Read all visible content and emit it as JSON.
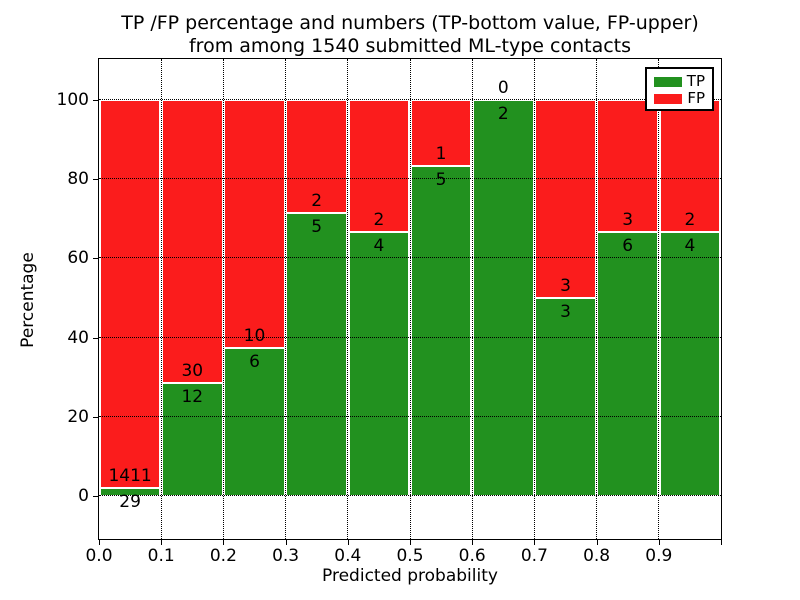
{
  "title": {
    "line1": "TP /FP percentage and numbers (TP-bottom value, FP-upper)",
    "line2": "from among 1540 submitted ML-type contacts"
  },
  "axes": {
    "xlabel": "Predicted probability",
    "ylabel": "Percentage"
  },
  "colors": {
    "tp": "#22911f",
    "fp": "#fb1c1c",
    "grid": "#000000",
    "frame": "#000000",
    "background": "#ffffff"
  },
  "legend": {
    "position": "upper right",
    "items": [
      {
        "label": "TP",
        "color": "#22911f"
      },
      {
        "label": "FP",
        "color": "#fb1c1c"
      }
    ]
  },
  "chart_data": {
    "type": "bar",
    "stacked": true,
    "percent_normalized": true,
    "title": "TP /FP percentage and numbers (TP-bottom value, FP-upper) from among 1540 submitted ML-type contacts",
    "xlabel": "Predicted probability",
    "ylabel": "Percentage",
    "grid": true,
    "legend_position": "upper right",
    "total_contacts": 1540,
    "bins": [
      "0.0-0.1",
      "0.1-0.2",
      "0.2-0.3",
      "0.3-0.4",
      "0.4-0.5",
      "0.5-0.6",
      "0.6-0.7",
      "0.7-0.8",
      "0.8-0.9",
      "0.9-1.0"
    ],
    "xtick_labels": [
      "0.0",
      "0.1",
      "0.2",
      "0.3",
      "0.4",
      "0.5",
      "0.6",
      "0.7",
      "0.8",
      "0.9"
    ],
    "ytick_values": [
      0,
      20,
      40,
      60,
      80,
      100
    ],
    "xlim": [
      0.0,
      1.0
    ],
    "ylim": [
      -10.8,
      110.3
    ],
    "series": [
      {
        "name": "TP",
        "color": "#22911f",
        "counts": [
          29,
          12,
          6,
          5,
          4,
          5,
          2,
          3,
          6,
          4
        ]
      },
      {
        "name": "FP",
        "color": "#fb1c1c",
        "counts": [
          1411,
          30,
          10,
          2,
          2,
          1,
          0,
          3,
          3,
          2
        ]
      }
    ],
    "tp_percent": [
      2.01,
      28.57,
      37.5,
      71.43,
      66.67,
      83.33,
      100.0,
      50.0,
      66.67,
      66.67
    ]
  }
}
